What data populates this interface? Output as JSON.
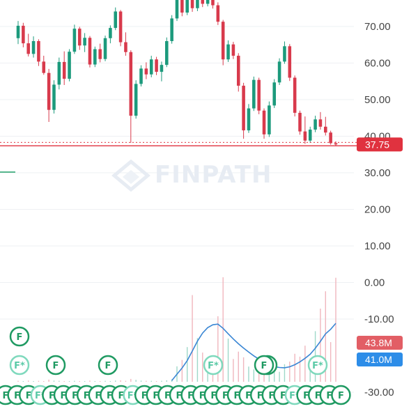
{
  "watermark": "FINPATH",
  "chart_data": {
    "type": "candlestick",
    "y_axis": {
      "position": "right",
      "ticks": [
        "70.00",
        "60.00",
        "50.00",
        "40.00",
        "30.00",
        "20.00",
        "10.00",
        "0.00",
        "-10.00",
        "-30.00"
      ],
      "tick_values": [
        70,
        60,
        50,
        40,
        30,
        20,
        10,
        0,
        -10,
        -30
      ]
    },
    "price_line": {
      "value": 37.75,
      "label": "37.75",
      "color": "#e0323f"
    },
    "volume_tags": [
      {
        "label": "43.8M",
        "color": "#e25e65"
      },
      {
        "label": "41.0M",
        "color": "#2d8de8"
      }
    ],
    "colors": {
      "up": "#1c9a7c",
      "down": "#d83a4c",
      "vol_line": "#3a86d4",
      "event": "#1f9a62"
    },
    "event_markers": {
      "rows": [
        [
          "F",
          "F",
          "F",
          "F*",
          "F",
          "F",
          "F",
          "F",
          "F",
          "F",
          "F",
          "F*",
          "F",
          "F",
          "F",
          "F",
          "F",
          "F",
          "F",
          "F",
          "F",
          "F",
          "F",
          "F",
          "F",
          "F*",
          "F",
          "F",
          "F",
          "F"
        ],
        [
          "F*",
          "F",
          "F*",
          "F",
          "F*"
        ],
        [
          "F",
          "F",
          "F"
        ]
      ]
    },
    "candles": [
      {
        "o": 66.8,
        "h": 71.5,
        "l": 65.2,
        "c": 70.2
      },
      {
        "o": 70.2,
        "h": 71.0,
        "l": 64.3,
        "c": 65.4
      },
      {
        "o": 65.4,
        "h": 68.0,
        "l": 61.8,
        "c": 62.5
      },
      {
        "o": 62.5,
        "h": 67.3,
        "l": 61.5,
        "c": 66.0
      },
      {
        "o": 66.0,
        "h": 66.5,
        "l": 59.2,
        "c": 60.4
      },
      {
        "o": 60.4,
        "h": 62.0,
        "l": 56.8,
        "c": 57.3
      },
      {
        "o": 57.3,
        "h": 58.4,
        "l": 43.9,
        "c": 47.2
      },
      {
        "o": 47.2,
        "h": 55.3,
        "l": 46.2,
        "c": 54.1
      },
      {
        "o": 54.1,
        "h": 61.5,
        "l": 52.8,
        "c": 60.3
      },
      {
        "o": 60.3,
        "h": 63.2,
        "l": 54.0,
        "c": 55.7
      },
      {
        "o": 55.7,
        "h": 63.8,
        "l": 55.0,
        "c": 63.1
      },
      {
        "o": 63.1,
        "h": 70.5,
        "l": 62.5,
        "c": 69.4
      },
      {
        "o": 69.4,
        "h": 69.9,
        "l": 63.6,
        "c": 64.8
      },
      {
        "o": 64.8,
        "h": 68.2,
        "l": 63.0,
        "c": 66.9
      },
      {
        "o": 66.9,
        "h": 67.4,
        "l": 58.8,
        "c": 59.6
      },
      {
        "o": 59.6,
        "h": 64.5,
        "l": 58.9,
        "c": 63.8
      },
      {
        "o": 63.8,
        "h": 65.3,
        "l": 60.2,
        "c": 61.1
      },
      {
        "o": 61.1,
        "h": 67.5,
        "l": 60.5,
        "c": 66.8
      },
      {
        "o": 66.8,
        "h": 70.3,
        "l": 65.4,
        "c": 69.6
      },
      {
        "o": 69.6,
        "h": 75.2,
        "l": 69.0,
        "c": 74.1
      },
      {
        "o": 74.1,
        "h": 74.5,
        "l": 64.6,
        "c": 65.7
      },
      {
        "o": 65.7,
        "h": 68.4,
        "l": 62.0,
        "c": 63.0
      },
      {
        "o": 63.0,
        "h": 63.5,
        "l": 38.2,
        "c": 45.6
      },
      {
        "o": 45.6,
        "h": 55.3,
        "l": 44.8,
        "c": 54.3
      },
      {
        "o": 54.3,
        "h": 59.4,
        "l": 53.6,
        "c": 58.5
      },
      {
        "o": 58.5,
        "h": 60.2,
        "l": 55.6,
        "c": 56.9
      },
      {
        "o": 56.9,
        "h": 62.0,
        "l": 56.1,
        "c": 61.0
      },
      {
        "o": 61.0,
        "h": 61.7,
        "l": 56.7,
        "c": 57.6
      },
      {
        "o": 57.6,
        "h": 60.4,
        "l": 55.0,
        "c": 59.5
      },
      {
        "o": 59.5,
        "h": 67.0,
        "l": 58.9,
        "c": 66.0
      },
      {
        "o": 66.0,
        "h": 73.1,
        "l": 65.3,
        "c": 72.2
      },
      {
        "o": 72.2,
        "h": 80.0,
        "l": 71.5,
        "c": 79.0
      },
      {
        "o": 79.0,
        "h": 80.3,
        "l": 72.8,
        "c": 73.8
      },
      {
        "o": 73.8,
        "h": 79.0,
        "l": 73.1,
        "c": 78.1
      },
      {
        "o": 78.1,
        "h": 80.2,
        "l": 74.0,
        "c": 75.0
      },
      {
        "o": 75.0,
        "h": 79.5,
        "l": 74.2,
        "c": 78.6
      },
      {
        "o": 78.6,
        "h": 79.1,
        "l": 75.3,
        "c": 76.2
      },
      {
        "o": 76.2,
        "h": 79.6,
        "l": 75.5,
        "c": 78.8
      },
      {
        "o": 78.8,
        "h": 79.3,
        "l": 74.9,
        "c": 75.8
      },
      {
        "o": 75.8,
        "h": 76.6,
        "l": 70.4,
        "c": 71.3
      },
      {
        "o": 71.3,
        "h": 71.8,
        "l": 59.4,
        "c": 61.0
      },
      {
        "o": 61.0,
        "h": 66.2,
        "l": 60.3,
        "c": 65.1
      },
      {
        "o": 65.1,
        "h": 65.8,
        "l": 61.1,
        "c": 62.0
      },
      {
        "o": 62.0,
        "h": 62.7,
        "l": 52.2,
        "c": 53.8
      },
      {
        "o": 53.8,
        "h": 54.6,
        "l": 39.3,
        "c": 41.6
      },
      {
        "o": 41.6,
        "h": 48.8,
        "l": 40.9,
        "c": 47.6
      },
      {
        "o": 47.6,
        "h": 56.3,
        "l": 46.9,
        "c": 55.4
      },
      {
        "o": 55.4,
        "h": 56.0,
        "l": 46.0,
        "c": 47.0
      },
      {
        "o": 47.0,
        "h": 47.6,
        "l": 39.3,
        "c": 40.5
      },
      {
        "o": 40.5,
        "h": 49.5,
        "l": 39.8,
        "c": 48.4
      },
      {
        "o": 48.4,
        "h": 55.6,
        "l": 47.7,
        "c": 54.7
      },
      {
        "o": 54.7,
        "h": 61.3,
        "l": 54.0,
        "c": 60.4
      },
      {
        "o": 60.4,
        "h": 65.9,
        "l": 59.8,
        "c": 64.6
      },
      {
        "o": 64.6,
        "h": 65.2,
        "l": 55.1,
        "c": 56.0
      },
      {
        "o": 56.0,
        "h": 56.6,
        "l": 45.4,
        "c": 46.4
      },
      {
        "o": 46.4,
        "h": 47.0,
        "l": 40.4,
        "c": 41.3
      },
      {
        "o": 41.3,
        "h": 45.4,
        "l": 37.9,
        "c": 38.8
      },
      {
        "o": 38.8,
        "h": 42.6,
        "l": 38.2,
        "c": 41.8
      },
      {
        "o": 41.8,
        "h": 45.6,
        "l": 41.1,
        "c": 44.6
      },
      {
        "o": 44.6,
        "h": 46.6,
        "l": 41.8,
        "c": 42.6
      },
      {
        "o": 42.6,
        "h": 45.3,
        "l": 40.2,
        "c": 41.0
      },
      {
        "o": 41.0,
        "h": 41.5,
        "l": 37.7,
        "c": 38.1
      },
      {
        "o": 38.1,
        "h": 38.6,
        "l": 37.4,
        "c": 37.75
      }
    ],
    "volumes": [
      {
        "v": 0.4,
        "up": false
      },
      {
        "v": 0.3,
        "up": true
      },
      {
        "v": 0.5,
        "up": false
      },
      {
        "v": 0.3,
        "up": true
      },
      {
        "v": 0.4,
        "up": false
      },
      {
        "v": 0.3,
        "up": false
      },
      {
        "v": 0.9,
        "up": false
      },
      {
        "v": 0.5,
        "up": true
      },
      {
        "v": 0.4,
        "up": true
      },
      {
        "v": 0.3,
        "up": false
      },
      {
        "v": 0.3,
        "up": true
      },
      {
        "v": 0.4,
        "up": true
      },
      {
        "v": 0.3,
        "up": false
      },
      {
        "v": 0.3,
        "up": true
      },
      {
        "v": 0.5,
        "up": false
      },
      {
        "v": 0.3,
        "up": true
      },
      {
        "v": 0.3,
        "up": false
      },
      {
        "v": 0.4,
        "up": true
      },
      {
        "v": 0.3,
        "up": true
      },
      {
        "v": 0.5,
        "up": true
      },
      {
        "v": 0.6,
        "up": false
      },
      {
        "v": 0.4,
        "up": false
      },
      {
        "v": 1.2,
        "up": false
      },
      {
        "v": 0.8,
        "up": true
      },
      {
        "v": 0.5,
        "up": true
      },
      {
        "v": 0.4,
        "up": false
      },
      {
        "v": 0.4,
        "up": true
      },
      {
        "v": 0.3,
        "up": false
      },
      {
        "v": 0.4,
        "up": true
      },
      {
        "v": 0.6,
        "up": true
      },
      {
        "v": 1.0,
        "up": true
      },
      {
        "v": 6.5,
        "up": true
      },
      {
        "v": 9.2,
        "up": false
      },
      {
        "v": 14.6,
        "up": true
      },
      {
        "v": 36.5,
        "up": false
      },
      {
        "v": 18.4,
        "up": true
      },
      {
        "v": 12.3,
        "up": false
      },
      {
        "v": 8.2,
        "up": true
      },
      {
        "v": 10.4,
        "up": false
      },
      {
        "v": 27.6,
        "up": false
      },
      {
        "v": 44.0,
        "up": false
      },
      {
        "v": 18.2,
        "up": true
      },
      {
        "v": 9.6,
        "up": false
      },
      {
        "v": 12.7,
        "up": false
      },
      {
        "v": 10.3,
        "up": false
      },
      {
        "v": 6.4,
        "up": true
      },
      {
        "v": 5.2,
        "up": true
      },
      {
        "v": 4.6,
        "up": false
      },
      {
        "v": 5.0,
        "up": false
      },
      {
        "v": 3.8,
        "up": true
      },
      {
        "v": 6.1,
        "up": true
      },
      {
        "v": 4.2,
        "up": true
      },
      {
        "v": 7.4,
        "up": true
      },
      {
        "v": 8.5,
        "up": false
      },
      {
        "v": 11.8,
        "up": false
      },
      {
        "v": 10.6,
        "up": false
      },
      {
        "v": 15.2,
        "up": false
      },
      {
        "v": 9.8,
        "up": true
      },
      {
        "v": 21.3,
        "up": true
      },
      {
        "v": 30.8,
        "up": false
      },
      {
        "v": 38.1,
        "up": false
      },
      {
        "v": 16.7,
        "up": false
      },
      {
        "v": 43.8,
        "up": false
      }
    ],
    "volume_ma": [
      null,
      null,
      null,
      null,
      null,
      null,
      null,
      null,
      null,
      null,
      null,
      null,
      null,
      null,
      null,
      null,
      null,
      null,
      null,
      null,
      null,
      null,
      null,
      null,
      null,
      null,
      null,
      null,
      null,
      null,
      0.5,
      3.2,
      5.8,
      8.9,
      13.0,
      17.1,
      20.5,
      22.8,
      24.0,
      24.3,
      22.5,
      20.2,
      18.0,
      16.0,
      14.2,
      12.5,
      10.9,
      9.5,
      8.2,
      7.0,
      6.4,
      6.0,
      5.9,
      6.3,
      7.2,
      8.4,
      9.9,
      11.6,
      14.1,
      17.0,
      20.2,
      22.1,
      24.6
    ]
  }
}
